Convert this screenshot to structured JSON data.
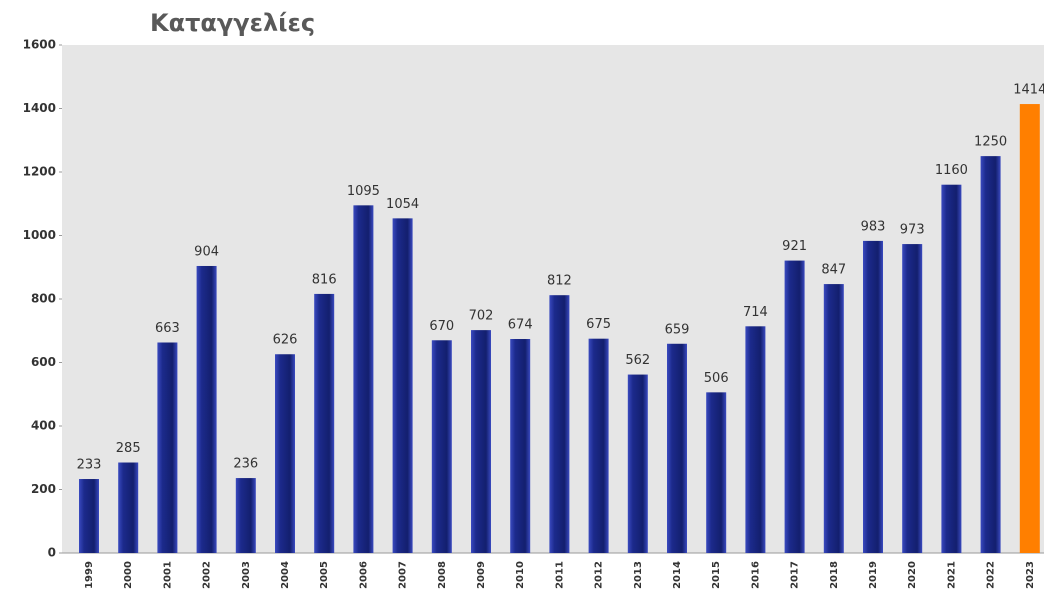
{
  "chart_data": {
    "type": "bar",
    "title": "Καταγγελίες",
    "categories": [
      "1999",
      "2000",
      "2001",
      "2002",
      "2003",
      "2004",
      "2005",
      "2006",
      "2007",
      "2008",
      "2009",
      "2010",
      "2011",
      "2012",
      "2013",
      "2014",
      "2015",
      "2016",
      "2017",
      "2018",
      "2019",
      "2020",
      "2021",
      "2022",
      "2023"
    ],
    "values": [
      233,
      285,
      663,
      904,
      236,
      626,
      816,
      1095,
      1054,
      670,
      702,
      674,
      812,
      675,
      562,
      659,
      506,
      714,
      921,
      847,
      983,
      973,
      1160,
      1250,
      1414
    ],
    "colors": [
      "#1c2a8c",
      "#1c2a8c",
      "#1c2a8c",
      "#1c2a8c",
      "#1c2a8c",
      "#1c2a8c",
      "#1c2a8c",
      "#1c2a8c",
      "#1c2a8c",
      "#1c2a8c",
      "#1c2a8c",
      "#1c2a8c",
      "#1c2a8c",
      "#1c2a8c",
      "#1c2a8c",
      "#1c2a8c",
      "#1c2a8c",
      "#1c2a8c",
      "#1c2a8c",
      "#1c2a8c",
      "#1c2a8c",
      "#1c2a8c",
      "#1c2a8c",
      "#1c2a8c",
      "#ff7f00"
    ],
    "ylim": [
      0,
      1600
    ],
    "yticks": [
      0,
      200,
      400,
      600,
      800,
      1000,
      1200,
      1400,
      1600
    ],
    "grid": false
  }
}
